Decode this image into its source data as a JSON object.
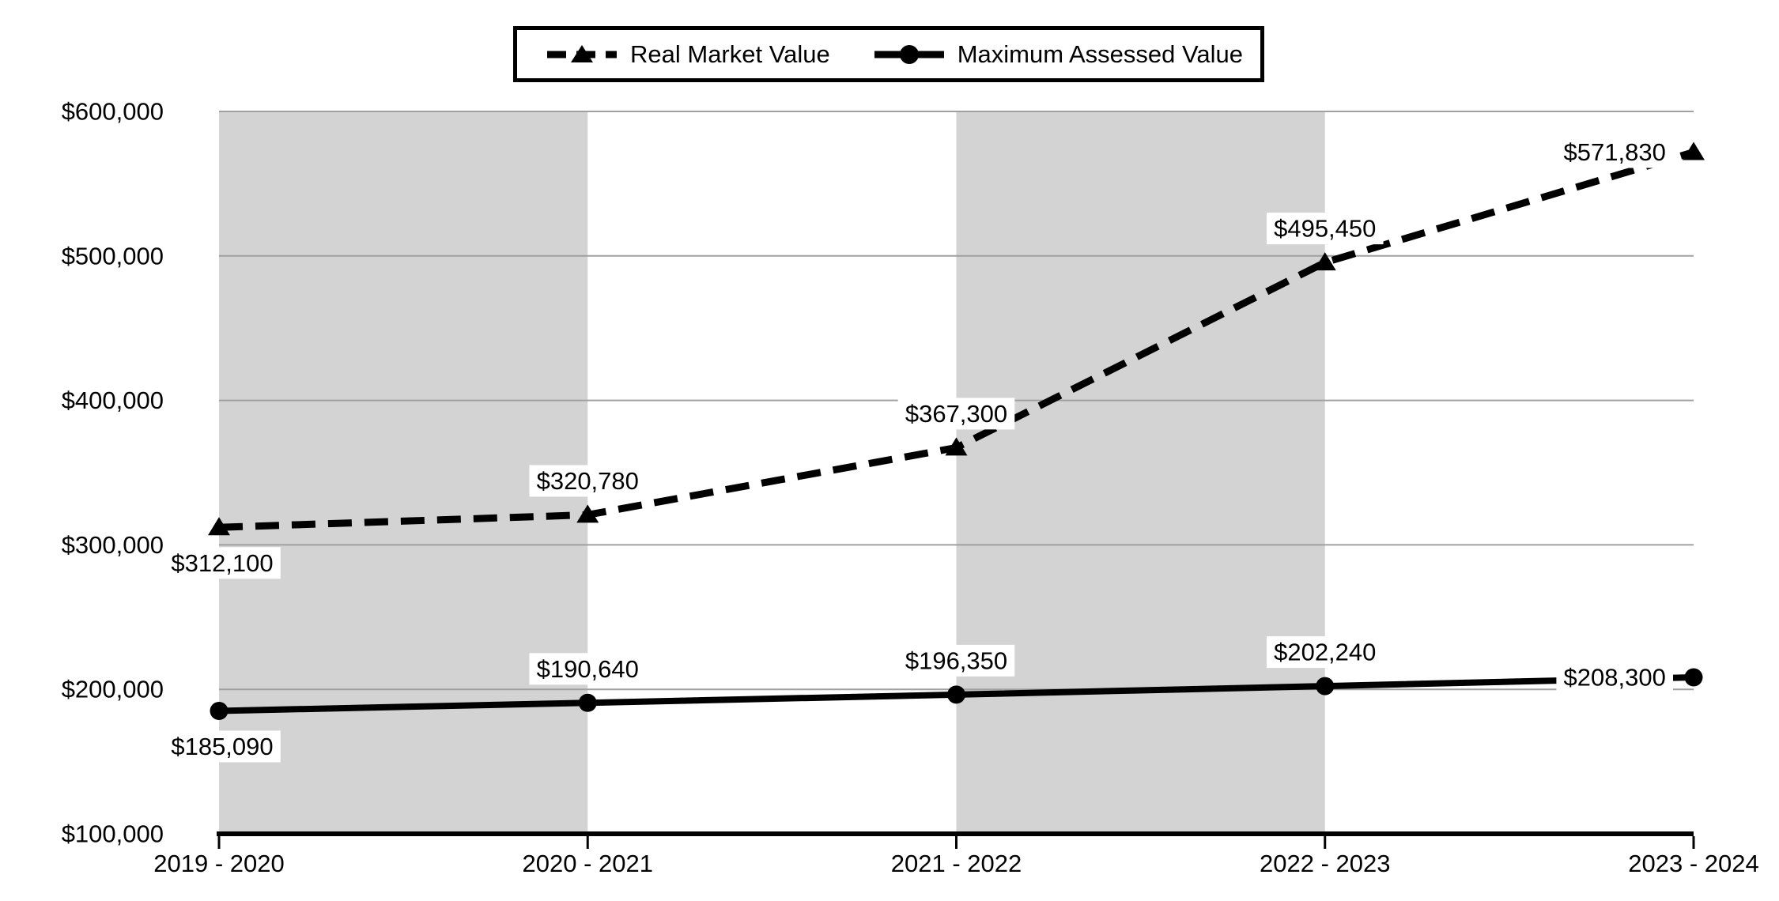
{
  "chart_data": {
    "type": "line",
    "title": "",
    "xlabel": "",
    "ylabel": "",
    "categories": [
      "2019 - 2020",
      "2020 - 2021",
      "2021 - 2022",
      "2022 - 2023",
      "2023 - 2024"
    ],
    "y_tick_labels": [
      "$100,000",
      "$200,000",
      "$300,000",
      "$400,000",
      "$500,000",
      "$600,000"
    ],
    "y_tick_values": [
      100000,
      200000,
      300000,
      400000,
      500000,
      600000
    ],
    "ylim": [
      100000,
      600000
    ],
    "grid": "horizontal gridlines on",
    "legend_position": "top center, boxed",
    "plot_bands": "gray vertical stripes over category intervals 1 and 3",
    "series": [
      {
        "name": "Real Market Value",
        "line_style": "dashed",
        "marker": "triangle",
        "color": "#000000",
        "values": [
          312100,
          320780,
          367300,
          495450,
          571830
        ],
        "labels": [
          "$312,100",
          "$320,780",
          "$367,300",
          "$495,450",
          "$571,830"
        ],
        "label_placement": [
          "below",
          "above",
          "above",
          "above",
          "left"
        ]
      },
      {
        "name": "Maximum Assessed Value",
        "line_style": "solid",
        "marker": "circle",
        "color": "#000000",
        "values": [
          185090,
          190640,
          196350,
          202240,
          208300
        ],
        "labels": [
          "$185,090",
          "$190,640",
          "$196,350",
          "$202,240",
          "$208,300"
        ],
        "label_placement": [
          "below",
          "above",
          "above",
          "above",
          "left"
        ]
      }
    ],
    "colors": {
      "band": "#d3d3d3",
      "gridline": "#a0a0a0",
      "axis": "#000000",
      "text": "#000000",
      "background": "#ffffff",
      "label_box": "#ffffff"
    }
  }
}
